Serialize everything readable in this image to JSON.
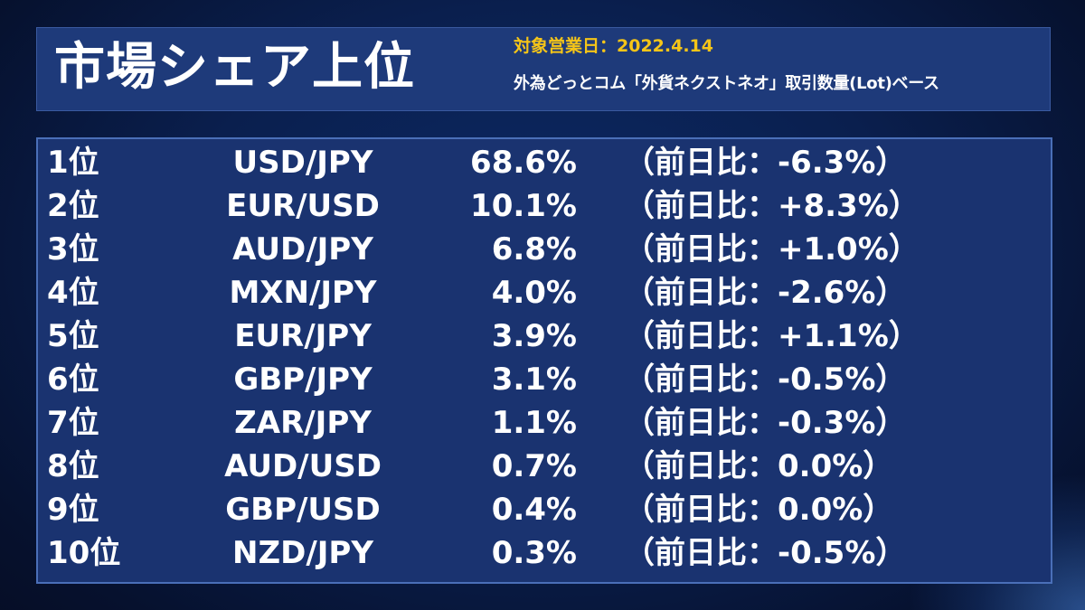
{
  "header": {
    "title": "市場シェア上位",
    "date_line": "対象営業日：2022.4.14",
    "basis_line": "外為どっとコム「外貨ネクストネオ」取引数量(Lot)ベース"
  },
  "table": {
    "rows": [
      {
        "rank": "1位",
        "pair": "USD/JPY",
        "share": "68.6%",
        "change": "（前日比：-6.3%）"
      },
      {
        "rank": "2位",
        "pair": "EUR/USD",
        "share": "10.1%",
        "change": "（前日比：+8.3%）"
      },
      {
        "rank": "3位",
        "pair": "AUD/JPY",
        "share": "6.8%",
        "change": "（前日比：+1.0%）"
      },
      {
        "rank": "4位",
        "pair": "MXN/JPY",
        "share": "4.0%",
        "change": "（前日比：-2.6%）"
      },
      {
        "rank": "5位",
        "pair": "EUR/JPY",
        "share": "3.9%",
        "change": "（前日比：+1.1%）"
      },
      {
        "rank": "6位",
        "pair": "GBP/JPY",
        "share": "3.1%",
        "change": "（前日比：-0.5%）"
      },
      {
        "rank": "7位",
        "pair": "ZAR/JPY",
        "share": "1.1%",
        "change": "（前日比：-0.3%）"
      },
      {
        "rank": "8位",
        "pair": "AUD/USD",
        "share": "0.7%",
        "change": "（前日比：0.0%）"
      },
      {
        "rank": "9位",
        "pair": "GBP/USD",
        "share": "0.4%",
        "change": "（前日比：0.0%）"
      },
      {
        "rank": "10位",
        "pair": "NZD/JPY",
        "share": "0.3%",
        "change": "（前日比：-0.5%）"
      }
    ]
  },
  "colors": {
    "background": "#0a1f4e",
    "panel": "#1e3a7a",
    "panel_border": "#4a6fb8",
    "text": "#ffffff",
    "date_accent": "#f5c518"
  }
}
